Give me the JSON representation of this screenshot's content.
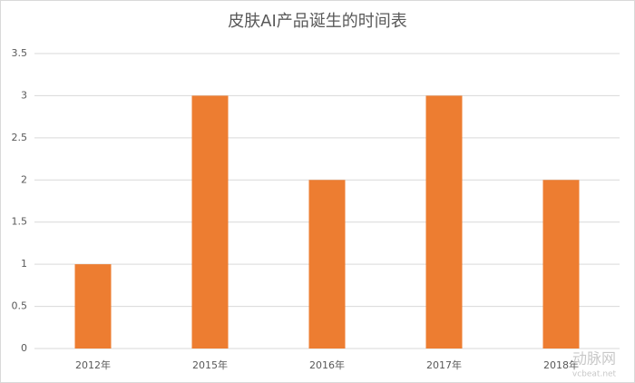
{
  "chart_data": {
    "type": "bar",
    "title": "皮肤AI产品诞生的时间表",
    "categories": [
      "2012年",
      "2015年",
      "2016年",
      "2017年",
      "2018年"
    ],
    "values": [
      1,
      3,
      2,
      3,
      2
    ],
    "color": "#ed7d31",
    "ylim": [
      0,
      3.5
    ],
    "yticks": [
      0,
      0.5,
      1,
      1.5,
      2,
      2.5,
      3,
      3.5
    ],
    "grid": true,
    "watermark": [
      "动脉网",
      "vcbeat.net"
    ]
  }
}
